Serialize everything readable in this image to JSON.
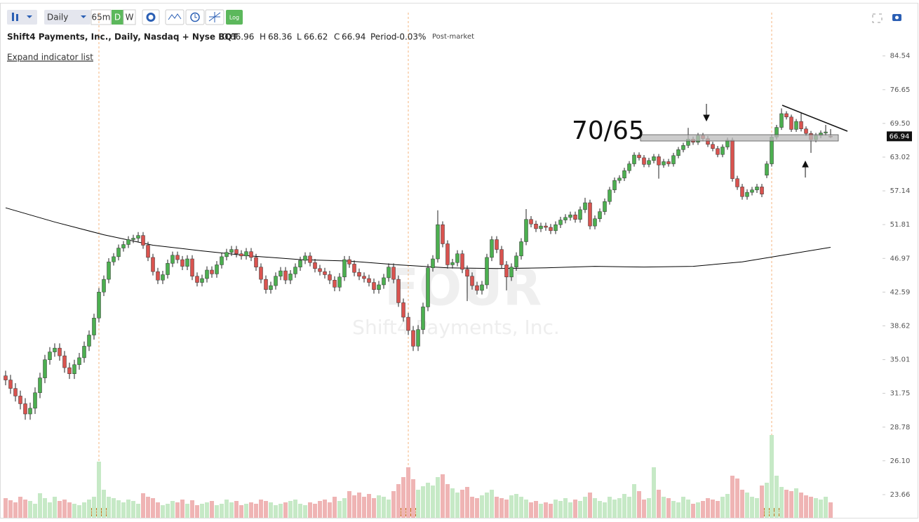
{
  "toolbar": {
    "interval": "Daily",
    "intraday": "65m",
    "daily": "D",
    "weekly": "W",
    "log": "Log"
  },
  "chart_data": {
    "type": "candlestick",
    "title": "Shift4 Payments, Inc., Daily, Nasdaq + Nyse BQT",
    "legend_labels": {
      "open": "O",
      "high": "H",
      "low": "L",
      "close": "C",
      "period": "Period"
    },
    "period_change": "-0.03%",
    "session": "Post-market",
    "expand_link": "Expand indicator list",
    "watermark": {
      "symbol": "FOUR",
      "name": "Shift4 Payments, Inc."
    },
    "annotation": "70/65",
    "log_scale": true,
    "ylim": [
      22.12,
      92.6
    ],
    "yticks": [
      84.54,
      76.65,
      {
        "value": 69.5,
        "label": "69.50"
      },
      63.02,
      57.14,
      51.81,
      46.97,
      42.59,
      38.62,
      35.01,
      31.75,
      28.78,
      {
        "value": 26.1,
        "label": "26.10"
      },
      23.66
    ],
    "ohlc": {
      "up_color": "#4caf50",
      "down_color": "#d9534f",
      "open": [
        33.4,
        33.0,
        32.2,
        31.5,
        30.8,
        29.9,
        30.4,
        31.8,
        33.2,
        35.0,
        35.8,
        36.2,
        35.4,
        34.2,
        33.6,
        34.5,
        35.2,
        36.4,
        37.6,
        39.5,
        42.6,
        44.2,
        46.5,
        47.2,
        48.4,
        48.9,
        49.6,
        49.8,
        50.2,
        48.8,
        47.1,
        45.2,
        44.1,
        44.8,
        46.3,
        47.4,
        46.8,
        45.9,
        46.9,
        44.6,
        43.8,
        44.3,
        45.4,
        44.9,
        46.1,
        47.2,
        47.8,
        48.2,
        47.6,
        47.3,
        47.9,
        47.1,
        45.8,
        44.2,
        42.9,
        43.4,
        44.6,
        45.3,
        44.1,
        44.9,
        45.8,
        46.7,
        47.3,
        46.4,
        45.6,
        45.2,
        44.8,
        44.1,
        43.2,
        44.5,
        46.8,
        46.2,
        45.1,
        44.6,
        44.3,
        43.8,
        42.9,
        43.5,
        44.4,
        45.8,
        44.2,
        41.3,
        39.6,
        38.1,
        36.4,
        38.2,
        40.8,
        45.7,
        46.9,
        51.8,
        49.0,
        46.1,
        46.4,
        47.6,
        45.5,
        44.6,
        43.4,
        42.8,
        43.5,
        47.1,
        49.6,
        48.2,
        46.1,
        44.5,
        45.8,
        47.3,
        49.3,
        52.6,
        51.9,
        51.2,
        51.6,
        51.4,
        50.9,
        51.8,
        52.5,
        52.9,
        53.3,
        52.6,
        54.1,
        55.2,
        51.6,
        52.7,
        53.8,
        55.4,
        57.3,
        58.9,
        59.3,
        60.6,
        61.8,
        63.4,
        62.9,
        61.7,
        62.4,
        63.1,
        61.6,
        62.2,
        61.8,
        63.3,
        64.4,
        65.2,
        66.4,
        65.8,
        67.1,
        66.5,
        65.4,
        64.6,
        63.5,
        64.9,
        66.2,
        59.2,
        57.8,
        56.2,
        56.9,
        57.3,
        57.8,
        59.8,
        61.8,
        66.8,
        68.7,
        71.5,
        70.8,
        68.3,
        69.9,
        68.4,
        67.5,
        66.3,
        67.1,
        67.6,
        66.96
      ],
      "high": [
        33.9,
        33.5,
        32.7,
        32.0,
        31.3,
        30.9,
        32.3,
        33.7,
        35.5,
        36.3,
        36.7,
        36.7,
        35.9,
        34.7,
        35.0,
        35.7,
        36.9,
        38.1,
        40.0,
        43.1,
        44.7,
        47.0,
        47.7,
        48.9,
        49.4,
        50.1,
        50.3,
        50.7,
        50.7,
        49.3,
        47.6,
        45.7,
        45.3,
        46.8,
        47.9,
        47.9,
        47.3,
        47.4,
        47.4,
        45.1,
        44.8,
        45.9,
        45.9,
        46.6,
        47.7,
        48.3,
        48.7,
        48.7,
        48.1,
        48.4,
        48.4,
        47.6,
        46.3,
        44.7,
        43.9,
        45.1,
        45.8,
        45.8,
        45.4,
        46.3,
        47.2,
        47.8,
        47.8,
        46.9,
        46.1,
        45.7,
        45.3,
        44.6,
        45.0,
        47.3,
        47.3,
        46.7,
        45.6,
        45.1,
        44.8,
        44.3,
        44.0,
        44.9,
        46.3,
        46.3,
        44.7,
        41.8,
        40.1,
        38.6,
        38.7,
        41.3,
        46.2,
        47.4,
        54.0,
        52.3,
        49.5,
        46.9,
        48.1,
        48.1,
        46.0,
        45.1,
        43.9,
        44.0,
        47.6,
        50.1,
        50.1,
        48.7,
        46.6,
        46.3,
        47.8,
        49.8,
        54.2,
        53.1,
        52.4,
        52.1,
        52.1,
        51.9,
        52.3,
        53.0,
        53.4,
        53.8,
        53.8,
        54.6,
        56.0,
        55.7,
        53.2,
        54.3,
        55.9,
        57.8,
        59.4,
        59.8,
        61.1,
        62.3,
        63.9,
        63.9,
        63.4,
        62.9,
        63.6,
        63.6,
        62.7,
        62.7,
        63.8,
        64.9,
        65.7,
        68.6,
        66.9,
        67.6,
        67.6,
        67.0,
        65.9,
        65.1,
        65.4,
        66.7,
        66.7,
        59.7,
        58.3,
        57.4,
        57.8,
        58.3,
        58.3,
        62.3,
        67.3,
        69.2,
        72.6,
        72.0,
        71.3,
        70.4,
        71.6,
        68.9,
        68.0,
        67.6,
        68.1,
        69.2,
        68.36
      ],
      "low": [
        32.5,
        31.7,
        31.0,
        30.3,
        29.4,
        29.4,
        29.9,
        31.3,
        32.7,
        34.5,
        35.3,
        34.9,
        33.7,
        33.1,
        33.1,
        34.0,
        34.7,
        35.9,
        37.1,
        39.0,
        42.1,
        43.7,
        46.0,
        46.7,
        47.9,
        48.4,
        49.1,
        49.3,
        48.3,
        46.6,
        44.7,
        43.6,
        43.6,
        44.3,
        45.8,
        46.3,
        45.4,
        45.4,
        44.1,
        43.3,
        43.3,
        43.8,
        44.4,
        44.4,
        45.6,
        46.7,
        47.3,
        47.1,
        46.8,
        46.8,
        46.6,
        45.3,
        43.7,
        42.4,
        42.4,
        42.9,
        44.1,
        43.6,
        43.6,
        44.4,
        45.3,
        46.2,
        45.9,
        45.1,
        44.7,
        44.3,
        43.6,
        42.7,
        42.7,
        44.0,
        45.7,
        44.6,
        44.1,
        43.8,
        43.3,
        42.4,
        42.4,
        43.0,
        43.9,
        43.7,
        40.8,
        39.1,
        37.6,
        35.9,
        35.9,
        37.7,
        40.3,
        45.2,
        46.4,
        48.5,
        45.6,
        45.6,
        45.9,
        45.0,
        41.5,
        42.9,
        42.3,
        42.3,
        43.0,
        46.6,
        47.7,
        45.6,
        42.8,
        44.0,
        45.3,
        46.8,
        48.8,
        51.4,
        50.7,
        50.7,
        50.9,
        50.4,
        50.4,
        51.3,
        52.0,
        52.4,
        52.1,
        52.1,
        53.6,
        51.1,
        51.1,
        52.2,
        53.3,
        54.9,
        56.8,
        58.4,
        58.8,
        60.1,
        61.3,
        62.4,
        61.2,
        61.2,
        61.9,
        59.2,
        61.1,
        61.3,
        61.3,
        62.8,
        63.9,
        64.7,
        65.3,
        65.3,
        66.0,
        64.9,
        64.1,
        63.0,
        63.0,
        64.4,
        58.7,
        57.3,
        55.7,
        55.7,
        56.4,
        56.8,
        56.1,
        59.3,
        61.3,
        66.3,
        68.2,
        70.3,
        67.8,
        67.8,
        67.9,
        67.0,
        63.8,
        65.8,
        66.6,
        67.1,
        66.62
      ],
      "close": [
        33.0,
        32.2,
        31.5,
        30.8,
        29.9,
        30.4,
        31.8,
        33.2,
        35.0,
        35.8,
        36.2,
        35.4,
        34.2,
        33.6,
        34.5,
        35.2,
        36.4,
        37.6,
        39.5,
        42.6,
        44.2,
        46.5,
        47.2,
        48.4,
        48.9,
        49.6,
        49.8,
        50.2,
        48.8,
        47.1,
        45.2,
        44.1,
        44.8,
        46.3,
        47.4,
        46.8,
        45.9,
        46.9,
        44.6,
        43.8,
        44.3,
        45.4,
        44.9,
        46.1,
        47.2,
        47.8,
        48.2,
        47.6,
        47.3,
        47.9,
        47.1,
        45.8,
        44.2,
        42.9,
        43.4,
        44.6,
        45.3,
        44.1,
        44.9,
        45.8,
        46.7,
        47.3,
        46.4,
        45.6,
        45.2,
        44.8,
        44.1,
        43.2,
        44.5,
        46.8,
        46.2,
        45.1,
        44.6,
        44.3,
        43.8,
        42.9,
        43.5,
        44.4,
        45.8,
        44.2,
        41.3,
        39.6,
        38.1,
        36.4,
        38.2,
        40.8,
        45.7,
        46.9,
        51.8,
        49.0,
        46.1,
        46.4,
        47.6,
        45.5,
        44.6,
        43.4,
        42.8,
        43.5,
        47.1,
        49.6,
        48.2,
        46.1,
        44.5,
        45.8,
        47.3,
        49.3,
        52.6,
        51.9,
        51.2,
        51.6,
        51.4,
        50.9,
        51.8,
        52.5,
        52.9,
        53.3,
        52.6,
        54.1,
        55.2,
        51.6,
        52.7,
        53.8,
        55.4,
        57.3,
        58.9,
        59.3,
        60.6,
        61.8,
        63.4,
        62.9,
        61.7,
        62.4,
        63.1,
        61.6,
        62.2,
        61.8,
        63.3,
        64.4,
        65.2,
        66.4,
        65.8,
        67.1,
        66.5,
        65.4,
        64.6,
        63.5,
        64.9,
        66.2,
        59.2,
        57.8,
        56.2,
        56.9,
        57.3,
        57.8,
        56.6,
        61.8,
        66.8,
        68.7,
        71.5,
        70.8,
        68.3,
        69.9,
        68.4,
        67.5,
        66.3,
        67.1,
        67.6,
        67.8,
        66.94
      ]
    },
    "moving_average": {
      "color": "#000000",
      "x": [
        0,
        10,
        20,
        30,
        40,
        50,
        60,
        70,
        80,
        90,
        100,
        110,
        120,
        130,
        140,
        150,
        160,
        168
      ],
      "values": [
        54.4,
        52.2,
        50.3,
        48.8,
        48.0,
        47.3,
        46.8,
        46.6,
        46.1,
        45.7,
        45.6,
        45.7,
        45.9,
        45.8,
        45.9,
        46.5,
        47.6,
        48.5
      ]
    },
    "volume": {
      "vlim": [
        0,
        130
      ],
      "up_color": "#c6e9c6",
      "down_color": "#efb4b4",
      "values": [
        28,
        25,
        22,
        30,
        26,
        24,
        20,
        35,
        28,
        22,
        30,
        24,
        26,
        22,
        20,
        18,
        22,
        26,
        30,
        80,
        40,
        30,
        28,
        25,
        22,
        26,
        24,
        20,
        35,
        30,
        28,
        22,
        18,
        20,
        24,
        22,
        26,
        20,
        25,
        18,
        20,
        22,
        24,
        18,
        20,
        26,
        22,
        24,
        18,
        20,
        22,
        20,
        26,
        24,
        22,
        18,
        20,
        22,
        24,
        26,
        20,
        18,
        22,
        20,
        24,
        26,
        22,
        30,
        24,
        28,
        38,
        32,
        36,
        30,
        34,
        28,
        32,
        30,
        26,
        38,
        48,
        58,
        72,
        55,
        40,
        45,
        50,
        46,
        58,
        62,
        48,
        42,
        36,
        40,
        44,
        30,
        28,
        32,
        36,
        40,
        30,
        28,
        26,
        32,
        34,
        30,
        26,
        22,
        24,
        20,
        22,
        20,
        26,
        24,
        28,
        22,
        26,
        24,
        30,
        36,
        28,
        24,
        22,
        30,
        26,
        28,
        34,
        30,
        48,
        38,
        26,
        28,
        72,
        40,
        30,
        28,
        24,
        22,
        30,
        26,
        20,
        22,
        24,
        28,
        26,
        24,
        30,
        34,
        60,
        56,
        40,
        36,
        30,
        28,
        46,
        50,
        118,
        60,
        44,
        40,
        38,
        42,
        36,
        32,
        30,
        28,
        26,
        30,
        22
      ]
    },
    "earnings": [
      {
        "x": 19,
        "label": "E 0.33"
      },
      {
        "x": 82,
        "label": "E 0.44"
      },
      {
        "x": 156,
        "label": "E 0.47"
      }
    ]
  }
}
